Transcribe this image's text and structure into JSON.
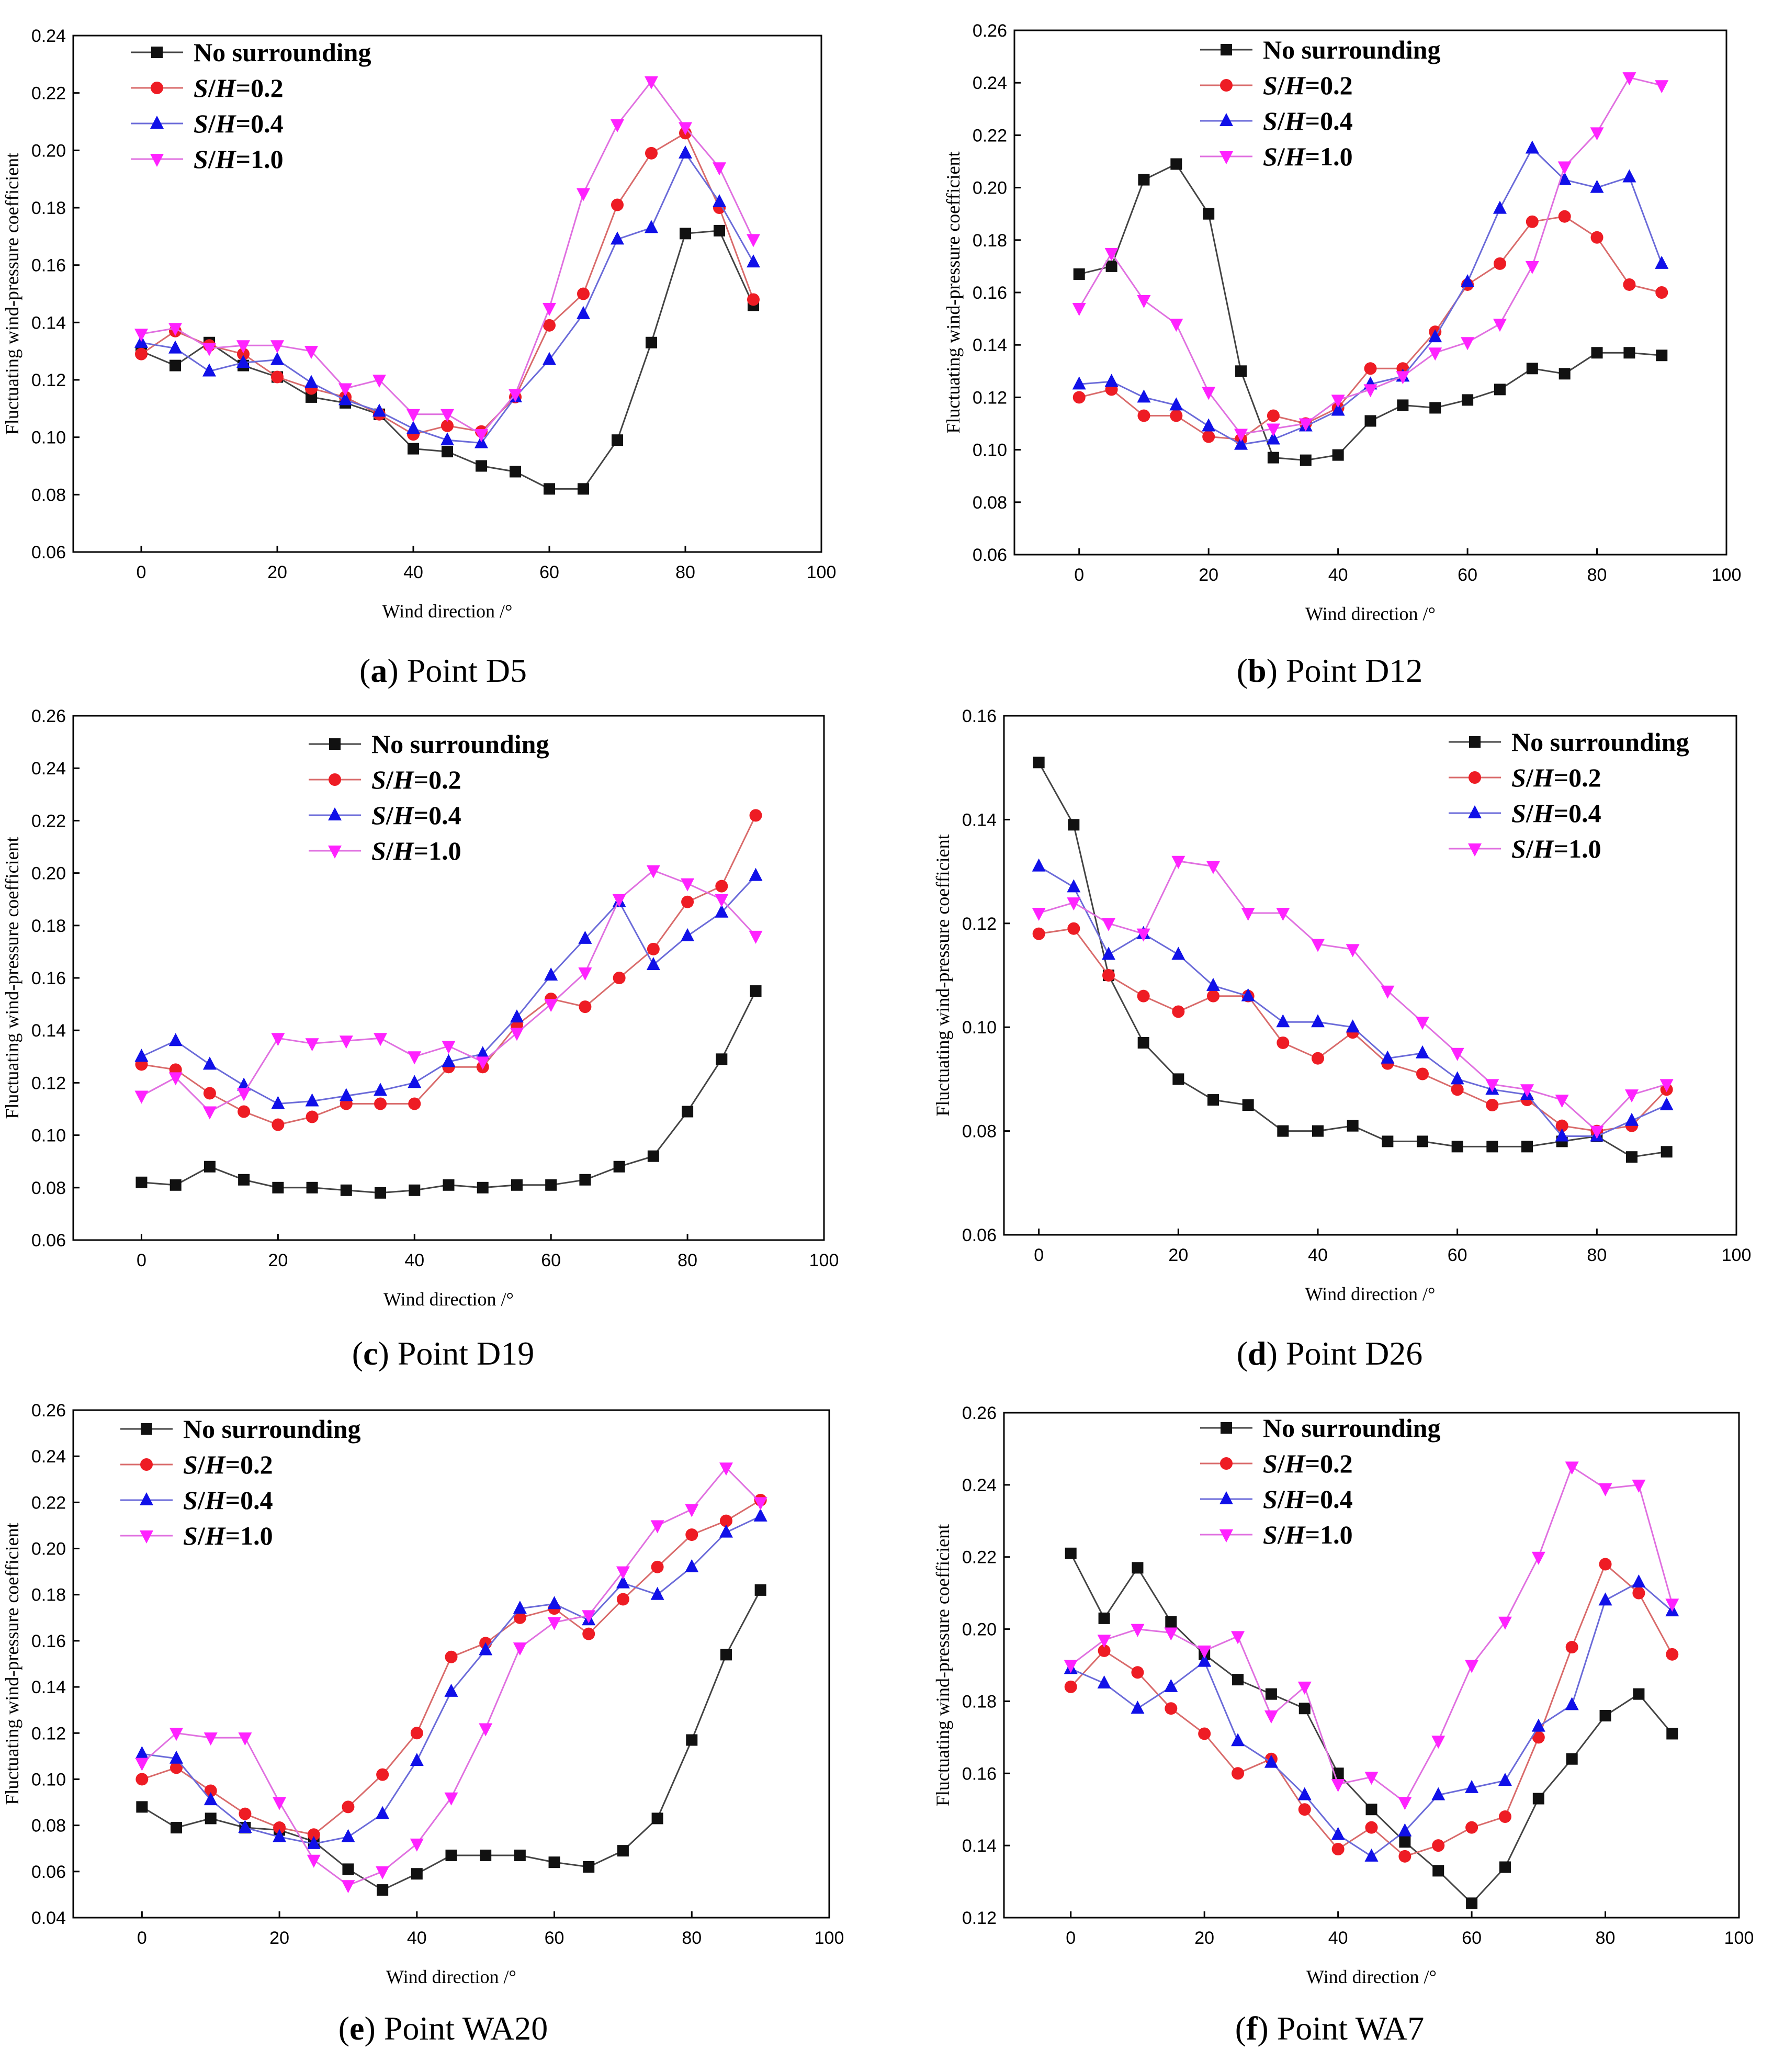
{
  "colors": {
    "No surrounding": "#111111",
    "S/H=0.2": "#ee1c24",
    "S/H=0.4": "#1010e8",
    "S/H=1.0": "#ff22ff",
    "line_no_surrounding": "#444444",
    "line_02": "#d96b6b",
    "line_04": "#6b6bd9",
    "line_10": "#e070e0"
  },
  "chart_data": [
    {
      "id": "a",
      "type": "line",
      "caption": {
        "letter": "a",
        "text": "Point D5"
      },
      "xlabel": "Wind direction  /°",
      "ylabel": "Fluctuating wind-pressure coefficient",
      "xlim": [
        -10,
        100
      ],
      "xticks": [
        0,
        20,
        40,
        60,
        80,
        100
      ],
      "ylim": [
        0.06,
        0.24
      ],
      "yticks": [
        "0.06",
        "0.08",
        "0.10",
        "0.12",
        "0.14",
        "0.16",
        "0.18",
        "0.20",
        "0.22",
        "0.24"
      ],
      "legend_position": "top-left",
      "x": [
        0,
        5,
        10,
        15,
        20,
        25,
        30,
        35,
        40,
        45,
        50,
        55,
        60,
        65,
        70,
        75,
        80,
        85,
        90
      ],
      "series": [
        {
          "name": "No surrounding",
          "marker": "square",
          "values": [
            0.13,
            0.125,
            0.133,
            0.125,
            0.121,
            0.114,
            0.112,
            0.108,
            0.096,
            0.095,
            0.09,
            0.088,
            0.082,
            0.082,
            0.099,
            0.133,
            0.171,
            0.172,
            0.146
          ]
        },
        {
          "name": "S/H=0.2",
          "marker": "circle",
          "values": [
            0.129,
            0.137,
            0.132,
            0.129,
            0.121,
            0.117,
            0.114,
            0.108,
            0.101,
            0.104,
            0.102,
            0.114,
            0.139,
            0.15,
            0.181,
            0.199,
            0.206,
            0.18,
            0.148
          ]
        },
        {
          "name": "S/H=0.4",
          "marker": "triangle-up",
          "values": [
            0.133,
            0.131,
            0.123,
            0.126,
            0.127,
            0.119,
            0.113,
            0.109,
            0.103,
            0.099,
            0.098,
            0.114,
            0.127,
            0.143,
            0.169,
            0.173,
            0.199,
            0.182,
            0.161
          ]
        },
        {
          "name": "S/H=1.0",
          "marker": "triangle-down",
          "values": [
            0.136,
            0.138,
            0.131,
            0.132,
            0.132,
            0.13,
            0.117,
            0.12,
            0.108,
            0.108,
            0.101,
            0.115,
            0.145,
            0.185,
            0.209,
            0.224,
            0.208,
            0.194,
            0.169
          ]
        }
      ]
    },
    {
      "id": "b",
      "type": "line",
      "caption": {
        "letter": "b",
        "text": "Point D12"
      },
      "xlabel": "Wind direction  /°",
      "ylabel": "Fluctuating wind-pressure coefficient",
      "xlim": [
        -10,
        100
      ],
      "xticks": [
        0,
        20,
        40,
        60,
        80,
        100
      ],
      "ylim": [
        0.06,
        0.26
      ],
      "yticks": [
        "0.06",
        "0.08",
        "0.10",
        "0.12",
        "0.14",
        "0.16",
        "0.18",
        "0.20",
        "0.22",
        "0.24",
        "0.26"
      ],
      "legend_position": "top-center",
      "x": [
        0,
        5,
        10,
        15,
        20,
        25,
        30,
        35,
        40,
        45,
        50,
        55,
        60,
        65,
        70,
        75,
        80,
        85,
        90
      ],
      "series": [
        {
          "name": "No surrounding",
          "marker": "square",
          "values": [
            0.167,
            0.17,
            0.203,
            0.209,
            0.19,
            0.13,
            0.097,
            0.096,
            0.098,
            0.111,
            0.117,
            0.116,
            0.119,
            0.123,
            0.131,
            0.129,
            0.137,
            0.137,
            0.136
          ]
        },
        {
          "name": "S/H=0.2",
          "marker": "circle",
          "values": [
            0.12,
            0.123,
            0.113,
            0.113,
            0.105,
            0.104,
            0.113,
            0.11,
            0.116,
            0.131,
            0.131,
            0.145,
            0.163,
            0.171,
            0.187,
            0.189,
            0.181,
            0.163,
            0.16
          ]
        },
        {
          "name": "S/H=0.4",
          "marker": "triangle-up",
          "values": [
            0.125,
            0.126,
            0.12,
            0.117,
            0.109,
            0.102,
            0.104,
            0.109,
            0.115,
            0.125,
            0.128,
            0.143,
            0.164,
            0.192,
            0.215,
            0.203,
            0.2,
            0.204,
            0.171
          ]
        },
        {
          "name": "S/H=1.0",
          "marker": "triangle-down",
          "values": [
            0.154,
            0.175,
            0.157,
            0.148,
            0.122,
            0.106,
            0.108,
            0.11,
            0.119,
            0.123,
            0.128,
            0.137,
            0.141,
            0.148,
            0.17,
            0.208,
            0.221,
            0.242,
            0.239
          ]
        }
      ]
    },
    {
      "id": "c",
      "type": "line",
      "caption": {
        "letter": "c",
        "text": "Point D19"
      },
      "xlabel": "Wind direction  /°",
      "ylabel": "Fluctuating wind-pressure coefficient",
      "xlim": [
        -10,
        100
      ],
      "xticks": [
        0,
        20,
        40,
        60,
        80,
        100
      ],
      "ylim": [
        0.06,
        0.26
      ],
      "yticks": [
        "0.06",
        "0.08",
        "0.10",
        "0.12",
        "0.14",
        "0.16",
        "0.18",
        "0.20",
        "0.22",
        "0.24",
        "0.26"
      ],
      "legend_position": "top-center",
      "x": [
        0,
        5,
        10,
        15,
        20,
        25,
        30,
        35,
        40,
        45,
        50,
        55,
        60,
        65,
        70,
        75,
        80,
        85,
        90
      ],
      "series": [
        {
          "name": "No surrounding",
          "marker": "square",
          "values": [
            0.082,
            0.081,
            0.088,
            0.083,
            0.08,
            0.08,
            0.079,
            0.078,
            0.079,
            0.081,
            0.08,
            0.081,
            0.081,
            0.083,
            0.088,
            0.092,
            0.109,
            0.129,
            0.155
          ]
        },
        {
          "name": "S/H=0.2",
          "marker": "circle",
          "values": [
            0.127,
            0.125,
            0.116,
            0.109,
            0.104,
            0.107,
            0.112,
            0.112,
            0.112,
            0.126,
            0.126,
            0.142,
            0.152,
            0.149,
            0.16,
            0.171,
            0.189,
            0.195,
            0.222
          ]
        },
        {
          "name": "S/H=0.4",
          "marker": "triangle-up",
          "values": [
            0.13,
            0.136,
            0.127,
            0.119,
            0.112,
            0.113,
            0.115,
            0.117,
            0.12,
            0.128,
            0.131,
            0.145,
            0.161,
            0.175,
            0.189,
            0.165,
            0.176,
            0.185,
            0.199
          ]
        },
        {
          "name": "S/H=1.0",
          "marker": "triangle-down",
          "values": [
            0.115,
            0.122,
            0.109,
            0.116,
            0.137,
            0.135,
            0.136,
            0.137,
            0.13,
            0.134,
            0.128,
            0.139,
            0.15,
            0.162,
            0.19,
            0.201,
            0.196,
            0.19,
            0.176
          ]
        }
      ]
    },
    {
      "id": "d",
      "type": "line",
      "caption": {
        "letter": "d",
        "text": "Point D26"
      },
      "xlabel": "Wind direction  /°",
      "ylabel": "Fluctuating wind-pressure coefficient",
      "xlim": [
        -5,
        100
      ],
      "xticks": [
        0,
        20,
        40,
        60,
        80,
        100
      ],
      "ylim": [
        0.06,
        0.16
      ],
      "yticks": [
        "0.06",
        "0.08",
        "0.10",
        "0.12",
        "0.14",
        "0.16"
      ],
      "legend_position": "top-right",
      "x": [
        0,
        5,
        10,
        15,
        20,
        25,
        30,
        35,
        40,
        45,
        50,
        55,
        60,
        65,
        70,
        75,
        80,
        85,
        90
      ],
      "series": [
        {
          "name": "No surrounding",
          "marker": "square",
          "values": [
            0.151,
            0.139,
            0.11,
            0.097,
            0.09,
            0.086,
            0.085,
            0.08,
            0.08,
            0.081,
            0.078,
            0.078,
            0.077,
            0.077,
            0.077,
            0.078,
            0.079,
            0.075,
            0.076
          ]
        },
        {
          "name": "S/H=0.2",
          "marker": "circle",
          "values": [
            0.118,
            0.119,
            0.11,
            0.106,
            0.103,
            0.106,
            0.106,
            0.097,
            0.094,
            0.099,
            0.093,
            0.091,
            0.088,
            0.085,
            0.086,
            0.081,
            0.08,
            0.081,
            0.088
          ]
        },
        {
          "name": "S/H=0.4",
          "marker": "triangle-up",
          "values": [
            0.131,
            0.127,
            0.114,
            0.118,
            0.114,
            0.108,
            0.106,
            0.101,
            0.101,
            0.1,
            0.094,
            0.095,
            0.09,
            0.088,
            0.087,
            0.079,
            0.079,
            0.082,
            0.085
          ]
        },
        {
          "name": "S/H=1.0",
          "marker": "triangle-down",
          "values": [
            0.122,
            0.124,
            0.12,
            0.118,
            0.132,
            0.131,
            0.122,
            0.122,
            0.116,
            0.115,
            0.107,
            0.101,
            0.095,
            0.089,
            0.088,
            0.086,
            0.08,
            0.087,
            0.089
          ]
        }
      ]
    },
    {
      "id": "e",
      "type": "line",
      "caption": {
        "letter": "e",
        "text": "Point WA20"
      },
      "xlabel": "Wind direction  /°",
      "ylabel": "Fluctuating wind-pressure coefficient",
      "xlim": [
        -10,
        100
      ],
      "xticks": [
        0,
        20,
        40,
        60,
        80,
        100
      ],
      "ylim": [
        0.04,
        0.26
      ],
      "yticks": [
        "0.04",
        "0.06",
        "0.08",
        "0.10",
        "0.12",
        "0.14",
        "0.16",
        "0.18",
        "0.20",
        "0.22",
        "0.24",
        "0.26"
      ],
      "legend_position": "top-left",
      "x": [
        0,
        5,
        10,
        15,
        20,
        25,
        30,
        35,
        40,
        45,
        50,
        55,
        60,
        65,
        70,
        75,
        80,
        85,
        90
      ],
      "series": [
        {
          "name": "No surrounding",
          "marker": "square",
          "values": [
            0.088,
            0.079,
            0.083,
            0.079,
            0.078,
            0.073,
            0.061,
            0.052,
            0.059,
            0.067,
            0.067,
            0.067,
            0.064,
            0.062,
            0.069,
            0.083,
            0.117,
            0.154,
            0.182
          ]
        },
        {
          "name": "S/H=0.2",
          "marker": "circle",
          "values": [
            0.1,
            0.105,
            0.095,
            0.085,
            0.079,
            0.076,
            0.088,
            0.102,
            0.12,
            0.153,
            0.159,
            0.17,
            0.174,
            0.163,
            0.178,
            0.192,
            0.206,
            0.212,
            0.221
          ]
        },
        {
          "name": "S/H=0.4",
          "marker": "triangle-up",
          "values": [
            0.111,
            0.109,
            0.091,
            0.079,
            0.075,
            0.072,
            0.075,
            0.085,
            0.108,
            0.138,
            0.156,
            0.174,
            0.176,
            0.169,
            0.185,
            0.18,
            0.192,
            0.207,
            0.214
          ]
        },
        {
          "name": "S/H=1.0",
          "marker": "triangle-down",
          "values": [
            0.107,
            0.12,
            0.118,
            0.118,
            0.09,
            0.065,
            0.054,
            0.06,
            0.072,
            0.092,
            0.122,
            0.157,
            0.168,
            0.171,
            0.19,
            0.21,
            0.217,
            0.235,
            0.22
          ]
        }
      ]
    },
    {
      "id": "f",
      "type": "line",
      "caption": {
        "letter": "f",
        "text": "Point WA7"
      },
      "xlabel": "Wind direction  /°",
      "ylabel": "Fluctuating wind-pressure coefficient",
      "xlim": [
        -10,
        100
      ],
      "xticks": [
        0,
        20,
        40,
        60,
        80,
        100
      ],
      "ylim": [
        0.12,
        0.26
      ],
      "yticks": [
        "0.12",
        "0.14",
        "0.16",
        "0.18",
        "0.20",
        "0.22",
        "0.24",
        "0.26"
      ],
      "legend_position": "top-center",
      "x": [
        0,
        5,
        10,
        15,
        20,
        25,
        30,
        35,
        40,
        45,
        50,
        55,
        60,
        65,
        70,
        75,
        80,
        85,
        90
      ],
      "series": [
        {
          "name": "No surrounding",
          "marker": "square",
          "values": [
            0.221,
            0.203,
            0.217,
            0.202,
            0.193,
            0.186,
            0.182,
            0.178,
            0.16,
            0.15,
            0.141,
            0.133,
            0.124,
            0.134,
            0.153,
            0.164,
            0.176,
            0.182,
            0.171
          ]
        },
        {
          "name": "S/H=0.2",
          "marker": "circle",
          "values": [
            0.184,
            0.194,
            0.188,
            0.178,
            0.171,
            0.16,
            0.164,
            0.15,
            0.139,
            0.145,
            0.137,
            0.14,
            0.145,
            0.148,
            0.17,
            0.195,
            0.218,
            0.21,
            0.193
          ]
        },
        {
          "name": "S/H=0.4",
          "marker": "triangle-up",
          "values": [
            0.189,
            0.185,
            0.178,
            0.184,
            0.191,
            0.169,
            0.163,
            0.154,
            0.143,
            0.137,
            0.144,
            0.154,
            0.156,
            0.158,
            0.173,
            0.179,
            0.208,
            0.213,
            0.205
          ]
        },
        {
          "name": "S/H=1.0",
          "marker": "triangle-down",
          "values": [
            0.19,
            0.197,
            0.2,
            0.199,
            0.194,
            0.198,
            0.176,
            0.184,
            0.157,
            0.159,
            0.152,
            0.169,
            0.19,
            0.202,
            0.22,
            0.245,
            0.239,
            0.24,
            0.207
          ]
        }
      ]
    }
  ]
}
